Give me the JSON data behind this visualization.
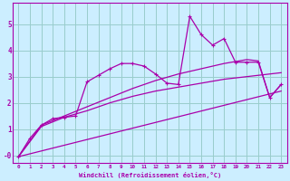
{
  "background_color": "#cceeff",
  "grid_color": "#99cccc",
  "line_color": "#aa00aa",
  "marker": "+",
  "xlim": [
    -0.5,
    23.5
  ],
  "ylim": [
    -0.3,
    5.8
  ],
  "xlabel": "Windchill (Refroidissement éolien,°C)",
  "xticks": [
    0,
    1,
    2,
    3,
    4,
    5,
    6,
    7,
    8,
    9,
    10,
    11,
    12,
    13,
    14,
    15,
    16,
    17,
    18,
    19,
    20,
    21,
    22,
    23
  ],
  "yticks": [
    0,
    1,
    2,
    3,
    4,
    5
  ],
  "ytick_labels": [
    "-0",
    "1",
    "2",
    "3",
    "4",
    "5"
  ],
  "series1": {
    "data": [
      [
        0,
        -0.05
      ],
      [
        1,
        0.65
      ],
      [
        2,
        1.15
      ],
      [
        3,
        1.4
      ],
      [
        4,
        1.45
      ],
      [
        5,
        1.5
      ],
      [
        6,
        2.8
      ],
      [
        7,
        3.05
      ],
      [
        8,
        3.3
      ],
      [
        9,
        3.5
      ],
      [
        10,
        3.5
      ],
      [
        11,
        3.4
      ],
      [
        12,
        3.1
      ],
      [
        13,
        2.75
      ],
      [
        14,
        2.7
      ],
      [
        15,
        5.3
      ],
      [
        16,
        4.6
      ],
      [
        17,
        4.2
      ],
      [
        18,
        4.45
      ],
      [
        19,
        3.55
      ],
      [
        20,
        3.55
      ],
      [
        21,
        3.55
      ],
      [
        22,
        2.2
      ],
      [
        23,
        2.7
      ]
    ]
  },
  "series2": {
    "data": [
      [
        0,
        -0.05
      ],
      [
        23,
        2.45
      ]
    ]
  },
  "series3": {
    "data": [
      [
        0,
        -0.05
      ],
      [
        2,
        1.1
      ],
      [
        4,
        1.45
      ],
      [
        6,
        1.7
      ],
      [
        8,
        2.0
      ],
      [
        10,
        2.25
      ],
      [
        12,
        2.45
      ],
      [
        14,
        2.6
      ],
      [
        16,
        2.75
      ],
      [
        18,
        2.9
      ],
      [
        20,
        3.0
      ],
      [
        22,
        3.1
      ],
      [
        23,
        3.15
      ]
    ]
  },
  "series4": {
    "data": [
      [
        0,
        -0.05
      ],
      [
        2,
        1.15
      ],
      [
        4,
        1.5
      ],
      [
        6,
        1.85
      ],
      [
        8,
        2.2
      ],
      [
        10,
        2.55
      ],
      [
        12,
        2.85
      ],
      [
        14,
        3.1
      ],
      [
        16,
        3.3
      ],
      [
        18,
        3.5
      ],
      [
        20,
        3.65
      ],
      [
        21,
        3.6
      ],
      [
        22,
        2.2
      ],
      [
        23,
        2.7
      ]
    ]
  }
}
